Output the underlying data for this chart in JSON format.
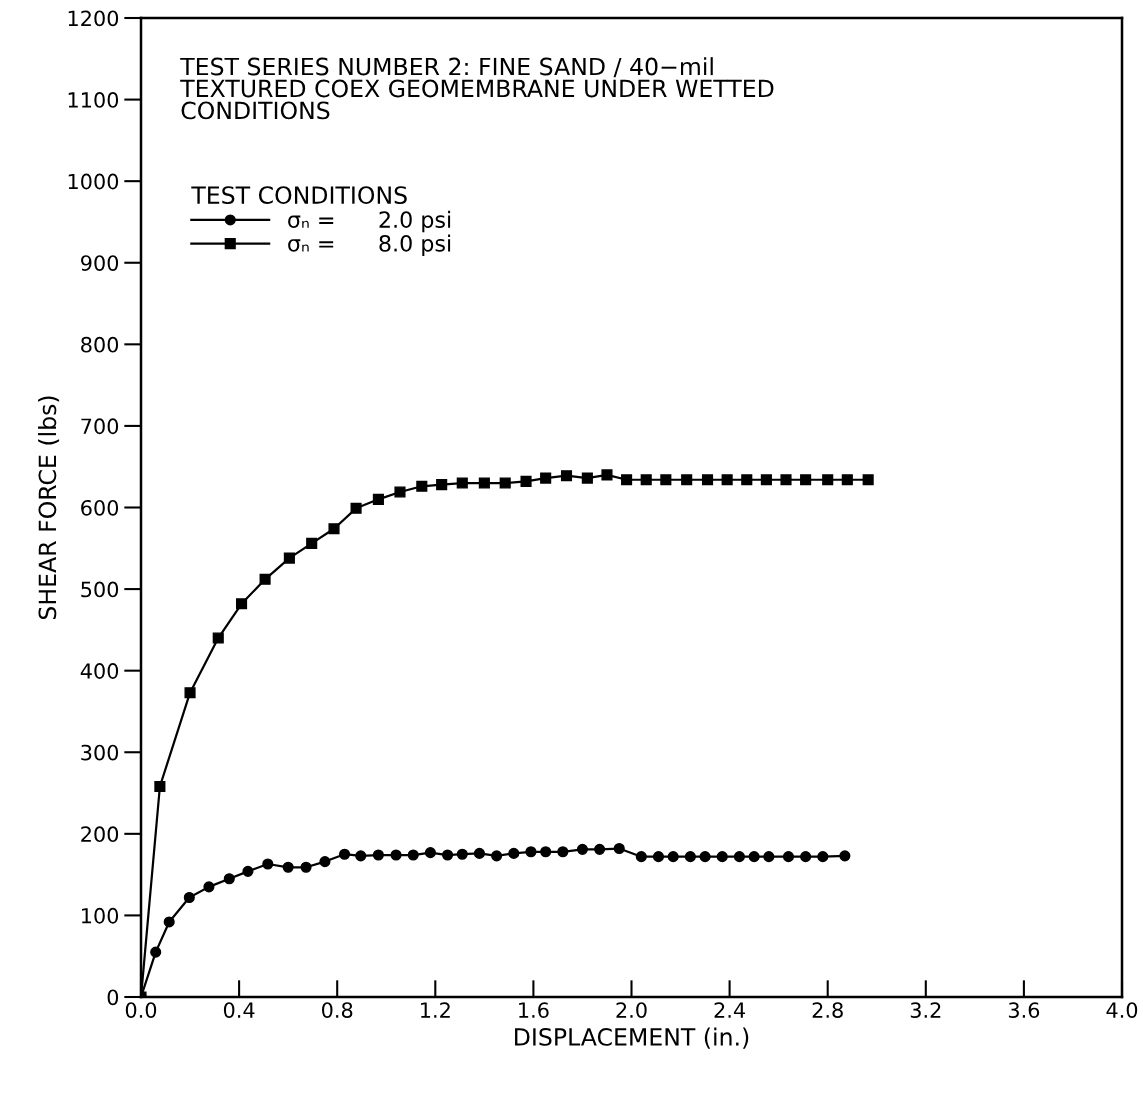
{
  "chart_data": {
    "type": "line",
    "title": "TEST SERIES NUMBER 2: FINE SAND / 40−mil\nTEXTURED COEX GEOMEMBRANE UNDER WETTED\nCONDITIONS",
    "xlabel": "DISPLACEMENT (in.)",
    "ylabel": "SHEAR FORCE (lbs)",
    "legend_title": "TEST CONDITIONS",
    "legend": "top left",
    "series": [
      {
        "name": "σₙ =      2.0 psi",
        "color": "#000000",
        "marker": "circle",
        "x": [
          0,
          0.06,
          0.115,
          0.197,
          0.277,
          0.36,
          0.436,
          0.517,
          0.6,
          0.673,
          0.75,
          0.83,
          0.896,
          0.968,
          1.04,
          1.11,
          1.18,
          1.25,
          1.31,
          1.38,
          1.45,
          1.52,
          1.59,
          1.65,
          1.72,
          1.8,
          1.87,
          1.95,
          2.04,
          2.11,
          2.17,
          2.24,
          2.3,
          2.37,
          2.44,
          2.5,
          2.56,
          2.64,
          2.71,
          2.78,
          2.87
        ],
        "values": [
          0,
          55,
          92,
          122,
          135,
          145,
          154,
          163,
          159,
          159,
          166,
          175,
          173,
          174,
          174,
          174,
          177,
          174,
          175,
          176,
          173,
          176,
          178,
          178,
          178,
          181,
          181,
          182,
          172,
          172,
          172,
          172,
          172,
          172,
          172,
          172,
          172,
          172,
          172,
          172,
          173
        ]
      },
      {
        "name": "σₙ =      8.0 psi",
        "color": "#000000",
        "marker": "square",
        "x": [
          0,
          0.077,
          0.2,
          0.315,
          0.41,
          0.506,
          0.605,
          0.696,
          0.787,
          0.877,
          0.968,
          1.056,
          1.145,
          1.226,
          1.31,
          1.4,
          1.485,
          1.57,
          1.65,
          1.735,
          1.82,
          1.9,
          1.98,
          2.06,
          2.14,
          2.225,
          2.31,
          2.39,
          2.47,
          2.55,
          2.63,
          2.71,
          2.8,
          2.88,
          2.965
        ],
        "values": [
          0,
          258,
          373,
          440,
          482,
          512,
          538,
          556,
          574,
          599,
          610,
          619,
          626,
          628,
          630,
          630,
          630,
          632,
          636,
          639,
          636,
          640,
          634,
          634,
          634,
          634,
          634,
          634,
          634,
          634,
          634,
          634,
          634,
          634,
          634
        ]
      }
    ],
    "xlim": [
      0,
      4.0
    ],
    "ylim": [
      0,
      1200
    ],
    "xticks": [
      {
        "value": 0,
        "label": "0.0"
      },
      0.4,
      0.8,
      1.2,
      1.6,
      {
        "value": 2.0,
        "label": "2.0"
      },
      2.4,
      2.8,
      3.2,
      3.6,
      {
        "value": 4.0,
        "label": "4.0"
      }
    ],
    "yticks": [
      0,
      100,
      200,
      300,
      400,
      500,
      600,
      700,
      800,
      900,
      1000,
      1100,
      1200
    ],
    "grid": false,
    "line_style": "solid"
  }
}
